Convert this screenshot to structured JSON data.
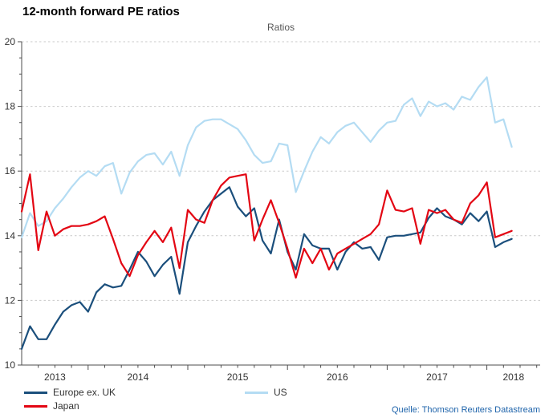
{
  "header": {
    "title": "12-month forward PE ratios"
  },
  "chart": {
    "inner_title": "Ratios",
    "source": "Quelle: Thomson Reuters Datastream"
  },
  "chart_data": {
    "type": "line",
    "title": "Ratios",
    "x_start": "2013-05",
    "x_end": "2018-04",
    "frequency": "monthly",
    "x_tick_labels": [
      "2013",
      "2014",
      "2015",
      "2016",
      "2017",
      "2018"
    ],
    "ylim": [
      10,
      20
    ],
    "y_ticks": [
      10,
      12,
      14,
      16,
      18,
      20
    ],
    "y_minor_step": 0.5,
    "grid": "horizontal-dashed",
    "legend_position": "bottom",
    "colors": {
      "grid": "#c9c9c9",
      "axis": "#4d4d4d",
      "tick_label": "#333333"
    },
    "series": [
      {
        "name": "US",
        "color": "#b4dcf3",
        "values": [
          13.95,
          14.7,
          14.3,
          14.45,
          14.85,
          15.15,
          15.5,
          15.8,
          16.0,
          15.85,
          16.15,
          16.25,
          15.3,
          15.95,
          16.3,
          16.5,
          16.55,
          16.2,
          16.6,
          15.85,
          16.8,
          17.35,
          17.55,
          17.6,
          17.6,
          17.45,
          17.3,
          16.95,
          16.5,
          16.25,
          16.3,
          16.85,
          16.8,
          15.35,
          16.0,
          16.6,
          17.05,
          16.85,
          17.2,
          17.4,
          17.5,
          17.2,
          16.9,
          17.25,
          17.5,
          17.55,
          18.05,
          18.25,
          17.7,
          18.15,
          18.0,
          18.1,
          17.9,
          18.3,
          18.2,
          18.6,
          18.9,
          17.5,
          17.6,
          16.75
        ]
      },
      {
        "name": "Europe ex. UK",
        "color": "#1b4f7c",
        "values": [
          10.5,
          11.2,
          10.8,
          10.8,
          11.25,
          11.65,
          11.85,
          11.95,
          11.65,
          12.25,
          12.5,
          12.4,
          12.45,
          12.95,
          13.5,
          13.2,
          12.75,
          13.1,
          13.35,
          12.2,
          13.8,
          14.3,
          14.75,
          15.1,
          15.3,
          15.5,
          14.9,
          14.6,
          14.85,
          13.85,
          13.45,
          14.5,
          13.5,
          12.95,
          14.05,
          13.7,
          13.6,
          13.6,
          12.95,
          13.5,
          13.8,
          13.6,
          13.65,
          13.25,
          13.95,
          14.0,
          14.0,
          14.05,
          14.1,
          14.55,
          14.85,
          14.6,
          14.5,
          14.35,
          14.7,
          14.45,
          14.75,
          13.65,
          13.8,
          13.9
        ]
      },
      {
        "name": "Japan",
        "color": "#e30613",
        "values": [
          14.75,
          15.9,
          13.55,
          14.75,
          14.0,
          14.2,
          14.3,
          14.3,
          14.35,
          14.45,
          14.6,
          13.9,
          13.15,
          12.75,
          13.4,
          13.8,
          14.15,
          13.8,
          14.25,
          13.0,
          14.8,
          14.5,
          14.4,
          15.1,
          15.55,
          15.8,
          15.85,
          15.9,
          13.85,
          14.5,
          15.1,
          14.4,
          13.6,
          12.7,
          13.6,
          13.15,
          13.6,
          12.95,
          13.45,
          13.6,
          13.75,
          13.9,
          14.05,
          14.35,
          15.4,
          14.8,
          14.75,
          14.85,
          13.75,
          14.8,
          14.7,
          14.8,
          14.5,
          14.4,
          15.0,
          15.25,
          15.65,
          13.95,
          14.05,
          14.15
        ]
      }
    ],
    "legend_order": [
      "Europe ex. UK",
      "Japan",
      "US"
    ]
  }
}
